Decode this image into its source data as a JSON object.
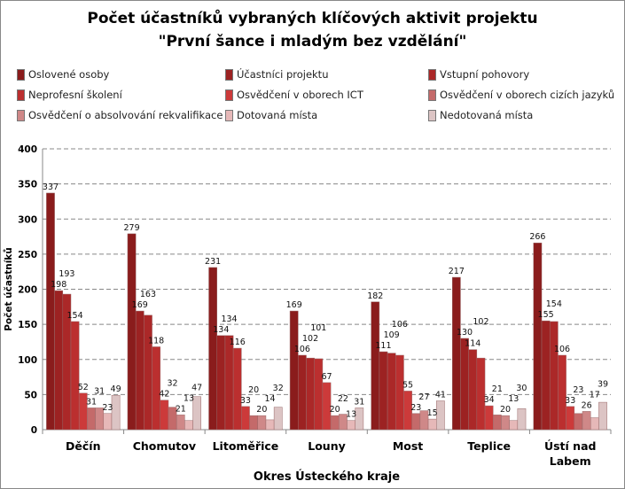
{
  "chart_data": {
    "type": "bar",
    "title": [
      "Počet účastníků  vybraných klíčových aktivit projektu",
      "\"První šance i mladým bez vzdělání\""
    ],
    "xlabel": "Okres Ústeckého kraje",
    "ylabel": "Počet účastníků",
    "ylim": [
      0,
      400
    ],
    "yticks": [
      "0",
      "50",
      "100",
      "150",
      "200",
      "250",
      "300",
      "350",
      "400"
    ],
    "categories": [
      "Děčín",
      "Chomutov",
      "Litoměřice",
      "Louny",
      "Most",
      "Teplice",
      "Ústí nad Labem"
    ],
    "legend_placement": "top",
    "grid": true,
    "series": [
      {
        "name": "Oslovené osoby",
        "color": "#8a1c1c",
        "values": [
          337,
          279,
          231,
          169,
          182,
          217,
          266
        ]
      },
      {
        "name": "Účastníci projektu",
        "color": "#9c2222",
        "values": [
          198,
          169,
          134,
          106,
          111,
          130,
          155
        ]
      },
      {
        "name": "Vstupní pohovory",
        "color": "#ab2828",
        "values": [
          193,
          163,
          134,
          102,
          109,
          114,
          154
        ]
      },
      {
        "name": "Neprofesní školení",
        "color": "#bb2f2f",
        "values": [
          154,
          118,
          116,
          101,
          106,
          102,
          106
        ]
      },
      {
        "name": "Osvědčení v oborech ICT",
        "color": "#cc3a3a",
        "values": [
          52,
          42,
          33,
          67,
          55,
          34,
          33
        ]
      },
      {
        "name": "Osvědčení v oborech cizích jazyků",
        "color": "#c46a6a",
        "values": [
          31,
          32,
          20,
          20,
          23,
          21,
          23
        ]
      },
      {
        "name": "Osvědčení o absolvování rekvalifikace",
        "color": "#cf8888",
        "values": [
          31,
          21,
          20,
          22,
          27,
          20,
          26
        ]
      },
      {
        "name": "Dotovaná místa",
        "color": "#e6b8b8",
        "values": [
          23,
          13,
          14,
          13,
          15,
          13,
          17
        ]
      },
      {
        "name": "Nedotovaná místa",
        "color": "#dcc4c4",
        "values": [
          49,
          47,
          32,
          31,
          41,
          30,
          39
        ]
      }
    ]
  }
}
